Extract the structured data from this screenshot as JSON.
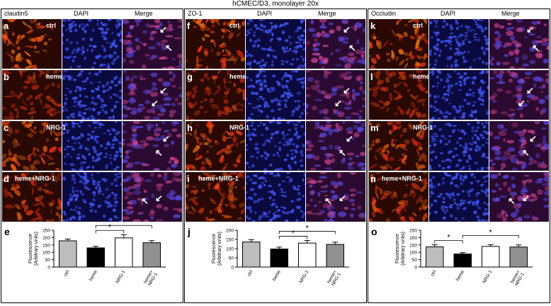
{
  "figure_title": "hCMEC/D3, monolayer 20x",
  "panels": [
    {
      "stain": "claudin5",
      "dapi": "DAPI",
      "merge": "Merge",
      "rows": [
        {
          "letter": "a",
          "cond": "ctrl"
        },
        {
          "letter": "b",
          "cond": "heme"
        },
        {
          "letter": "c",
          "cond": "NRG-1"
        },
        {
          "letter": "d",
          "cond": "heme+NRG-1"
        }
      ],
      "chart_letter": "e"
    },
    {
      "stain": "ZO-1",
      "dapi": "DAPI",
      "merge": "Merge",
      "rows": [
        {
          "letter": "f",
          "cond": "ctrl"
        },
        {
          "letter": "g",
          "cond": "heme"
        },
        {
          "letter": "h",
          "cond": "NRG-1"
        },
        {
          "letter": "i",
          "cond": "heme+NRG-1"
        }
      ],
      "chart_letter": "j"
    },
    {
      "stain": "Occludin",
      "dapi": "DAPI",
      "merge": "Merge",
      "rows": [
        {
          "letter": "k",
          "cond": "ctrl"
        },
        {
          "letter": "l",
          "cond": "heme"
        },
        {
          "letter": "m",
          "cond": "NRG-1"
        },
        {
          "letter": "n",
          "cond": "heme+NRG-1"
        }
      ],
      "chart_letter": "o"
    }
  ],
  "colors": {
    "stain": "#c23a16",
    "dapi": "#1c2fa0",
    "merge": "#8a2f86",
    "ctrl": "#bdbdbd",
    "heme": "#000000",
    "nrg": "#ffffff",
    "combo": "#909090"
  },
  "chart_data": [
    {
      "type": "bar",
      "categories": [
        "ctrl",
        "heme",
        "NRG-1",
        "heme+ NRG-1"
      ],
      "values": [
        178,
        130,
        198,
        165
      ],
      "errors": [
        12,
        11,
        22,
        14
      ],
      "ylabel": "Fluorescence (Arbitrary units)",
      "ylim": [
        0,
        250
      ],
      "yticks": [
        0,
        50,
        100,
        150,
        200,
        250
      ],
      "significance": [
        {
          "from": 1,
          "to": 2,
          "label": "*"
        },
        {
          "from": 1,
          "to": 3,
          "label": "*"
        }
      ]
    },
    {
      "type": "bar",
      "categories": [
        "ctrl",
        "heme",
        "NRG-1",
        "heme+ NRG-1"
      ],
      "values": [
        136,
        98,
        130,
        123
      ],
      "errors": [
        12,
        10,
        14,
        12
      ],
      "ylabel": "Fluorescence (Arbitrary units)",
      "ylim": [
        0,
        200
      ],
      "yticks": [
        0,
        50,
        100,
        150,
        200
      ],
      "significance": [
        {
          "from": 1,
          "to": 2,
          "label": "*"
        },
        {
          "from": 1,
          "to": 3,
          "label": "*"
        }
      ]
    },
    {
      "type": "bar",
      "categories": [
        "ctrl",
        "heme",
        "NRG-1",
        "heme+ NRG-1"
      ],
      "values": [
        137,
        89,
        140,
        136
      ],
      "errors": [
        14,
        9,
        12,
        14
      ],
      "ylabel": "Fluorescence (Arbitrary units)",
      "ylim": [
        0,
        250
      ],
      "yticks": [
        0,
        50,
        100,
        150,
        200,
        250
      ],
      "significance": [
        {
          "from": 0,
          "to": 1,
          "label": "*"
        },
        {
          "from": 1,
          "to": 3,
          "label": "*"
        }
      ]
    }
  ]
}
